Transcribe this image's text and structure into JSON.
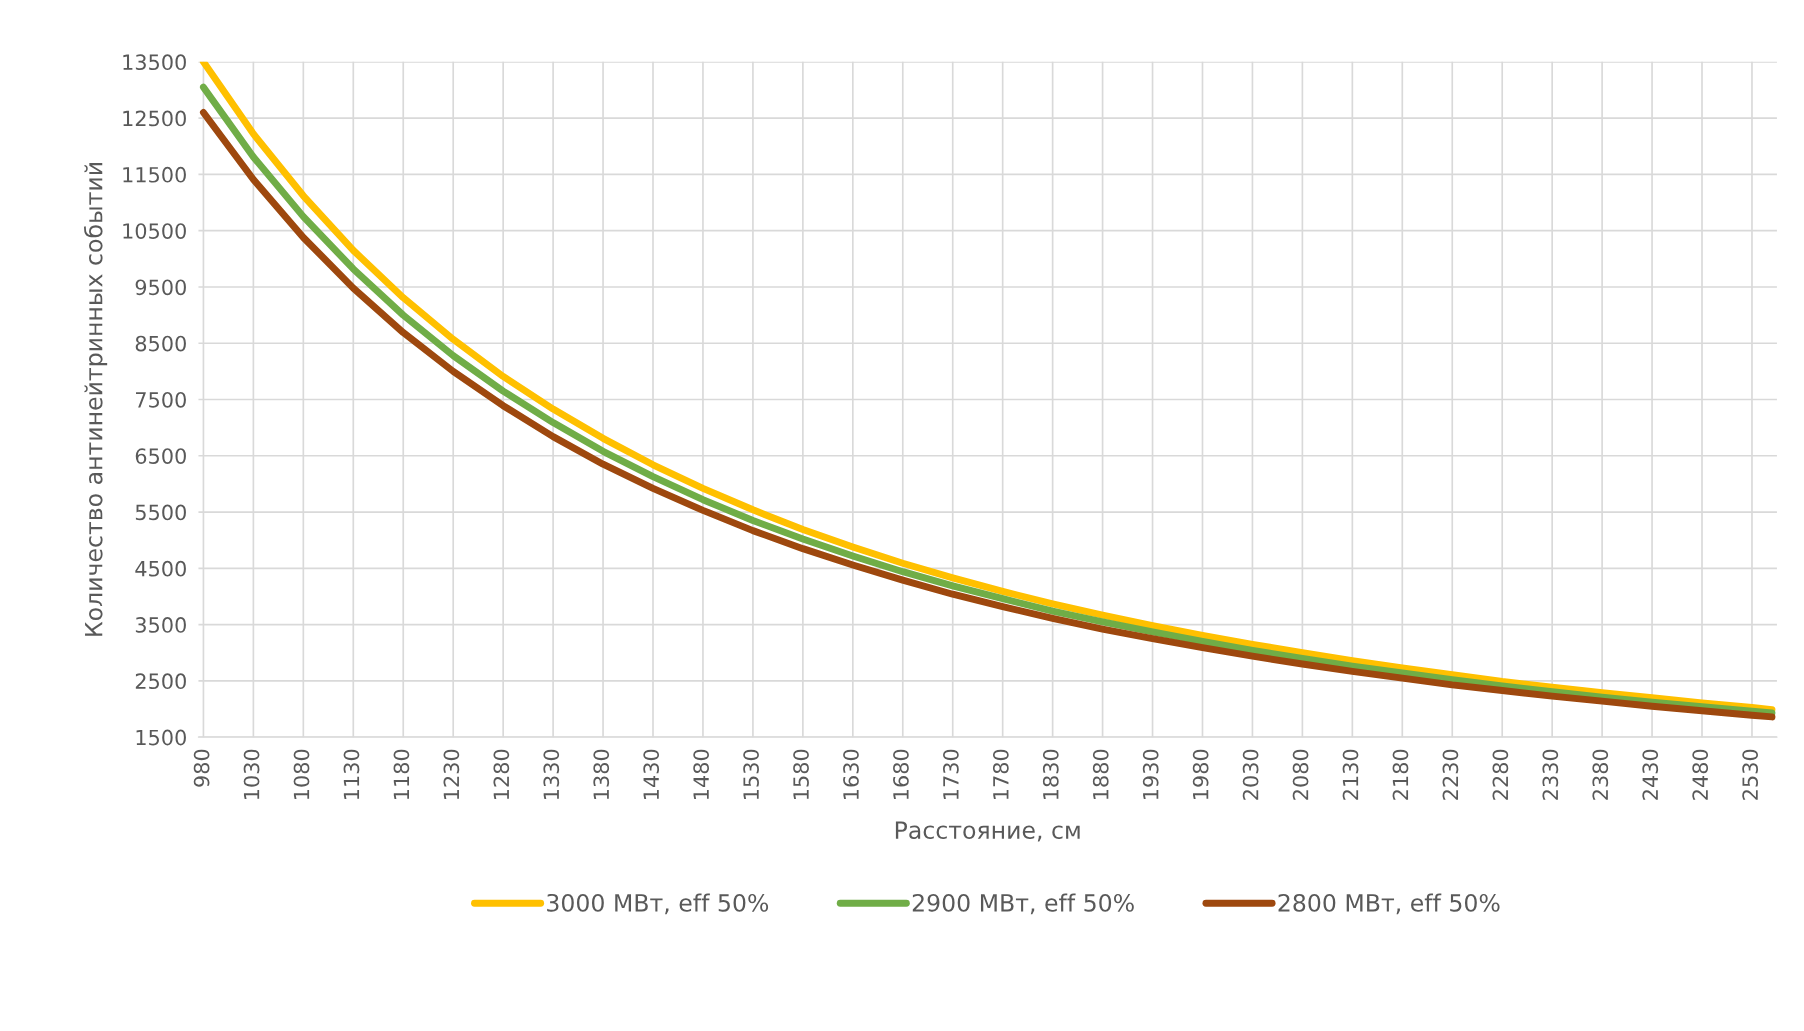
{
  "chart_data": {
    "type": "line",
    "xlabel": "Расстояние, см",
    "ylabel": "Количество антинейтринных событий",
    "x": [
      980,
      1030,
      1080,
      1130,
      1180,
      1230,
      1280,
      1330,
      1380,
      1430,
      1480,
      1530,
      1580,
      1630,
      1680,
      1730,
      1780,
      1830,
      1880,
      1930,
      1980,
      2030,
      2080,
      2130,
      2180,
      2230,
      2280,
      2330,
      2380,
      2430,
      2480,
      2530,
      2550
    ],
    "series": [
      {
        "name": "3000 МВт, eff 50%",
        "color": "#ffc000",
        "values": [
          13500,
          12220,
          11120,
          10150,
          9310,
          8570,
          7910,
          7330,
          6810,
          6340,
          5920,
          5540,
          5190,
          4880,
          4590,
          4330,
          4090,
          3870,
          3670,
          3480,
          3310,
          3150,
          3000,
          2860,
          2730,
          2610,
          2490,
          2390,
          2290,
          2200,
          2110,
          2030,
          1990
        ]
      },
      {
        "name": "2900 МВт, eff 50%",
        "color": "#70ad47",
        "values": [
          13050,
          11810,
          10750,
          9820,
          9000,
          8280,
          7650,
          7090,
          6580,
          6130,
          5720,
          5350,
          5020,
          4720,
          4440,
          4190,
          3960,
          3740,
          3550,
          3370,
          3200,
          3040,
          2900,
          2760,
          2640,
          2520,
          2410,
          2310,
          2210,
          2120,
          2040,
          1960,
          1930
        ]
      },
      {
        "name": "2800 МВт, eff 50%",
        "color": "#9e480e",
        "values": [
          12600,
          11410,
          10380,
          9480,
          8690,
          8000,
          7390,
          6840,
          6350,
          5920,
          5530,
          5170,
          4850,
          4560,
          4290,
          4040,
          3820,
          3610,
          3420,
          3250,
          3090,
          2940,
          2800,
          2670,
          2550,
          2430,
          2330,
          2230,
          2140,
          2050,
          1970,
          1890,
          1860
        ]
      }
    ],
    "xlim": [
      975,
      2555
    ],
    "xticks": [
      980,
      1030,
      1080,
      1130,
      1180,
      1230,
      1280,
      1330,
      1380,
      1430,
      1480,
      1530,
      1580,
      1630,
      1680,
      1730,
      1780,
      1830,
      1880,
      1930,
      1980,
      2030,
      2080,
      2130,
      2180,
      2230,
      2280,
      2330,
      2380,
      2430,
      2480,
      2530
    ],
    "ylim": [
      1500,
      13500
    ],
    "yticks": [
      1500,
      2500,
      3500,
      4500,
      5500,
      6500,
      7500,
      8500,
      9500,
      10500,
      11500,
      12500,
      13500
    ],
    "grid": true,
    "legend": "bottom",
    "marker": "none",
    "line_style": "solid"
  }
}
